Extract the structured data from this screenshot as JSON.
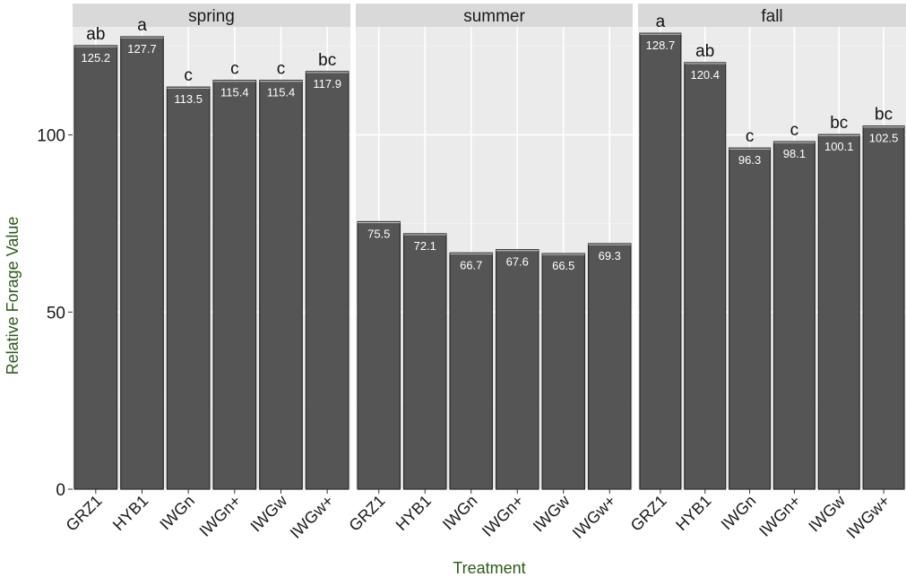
{
  "chart_data": {
    "type": "bar",
    "xlabel": "Treatment",
    "ylabel": "Relative Forage Value",
    "ylim": [
      0,
      130.5
    ],
    "yticks": [
      0,
      50,
      100
    ],
    "grid": true,
    "axis_title_color": "#2e5a1c",
    "bar_color": "#555555",
    "panel_background": "#ebebeb",
    "strip_background": "#d9d9d9",
    "categories": [
      "GRZ1",
      "HYB1",
      "IWGn",
      "IWGn+",
      "IWGw",
      "IWGw+"
    ],
    "panels": [
      {
        "name": "spring",
        "values": [
          125.2,
          127.7,
          113.5,
          115.4,
          115.4,
          117.9
        ],
        "value_labels": [
          "125.2",
          "127.7",
          "113.5",
          "115.4",
          "115.4",
          "117.9"
        ],
        "letters": [
          "ab",
          "a",
          "c",
          "c",
          "c",
          "bc"
        ]
      },
      {
        "name": "summer",
        "values": [
          75.5,
          72.1,
          66.7,
          67.6,
          66.5,
          69.3
        ],
        "value_labels": [
          "75.5",
          "72.1",
          "66.7",
          "67.6",
          "66.5",
          "69.3"
        ],
        "letters": [
          "",
          "",
          "",
          "",
          "",
          ""
        ]
      },
      {
        "name": "fall",
        "values": [
          128.7,
          120.4,
          96.3,
          98.1,
          100.1,
          102.5
        ],
        "value_labels": [
          "128.7",
          "120.4",
          "96.3",
          "98.1",
          "100.1",
          "102.5"
        ],
        "letters": [
          "a",
          "ab",
          "c",
          "c",
          "bc",
          "bc"
        ]
      }
    ]
  }
}
